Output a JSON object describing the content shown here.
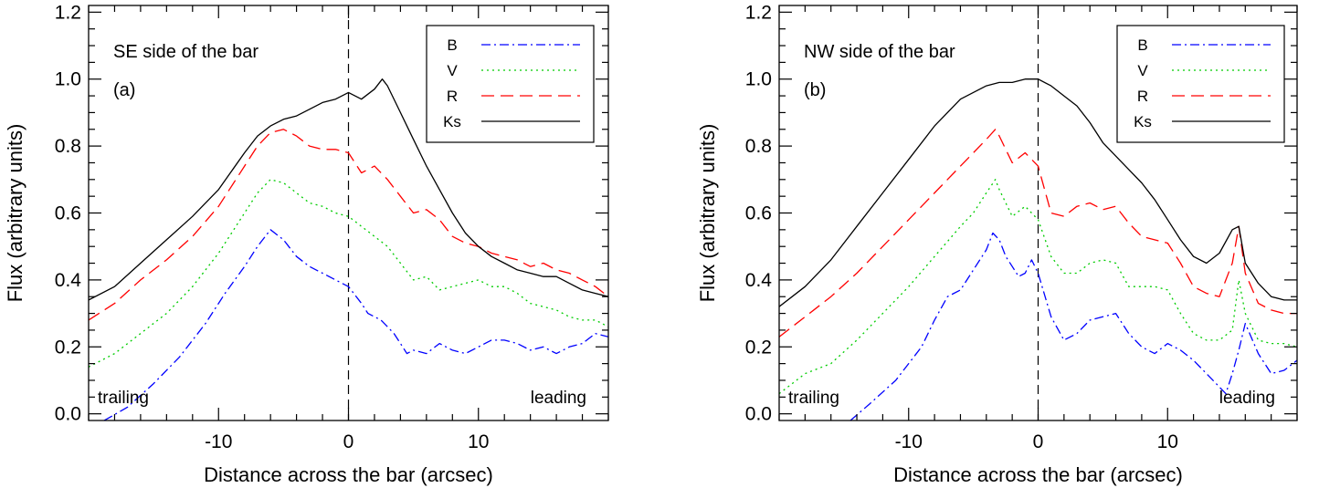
{
  "chart_data": [
    {
      "type": "line",
      "panel": "(a)",
      "annotation": "SE side of the bar",
      "corner_labels": {
        "left": "trailing",
        "right": "leading"
      },
      "xlabel": "Distance across the bar (arcsec)",
      "ylabel": "Flux (arbitrary units)",
      "xlim": [
        -20,
        20
      ],
      "ylim": [
        -0.02,
        1.22
      ],
      "xticks": [
        -10,
        0,
        10
      ],
      "xtick_labels": [
        "-10",
        "0",
        "10"
      ],
      "yticks": [
        0.0,
        0.2,
        0.4,
        0.6,
        0.8,
        1.0,
        1.2
      ],
      "ytick_labels": [
        "0.0",
        "0.2",
        "0.4",
        "0.6",
        "0.8",
        "1.0",
        "1.2"
      ],
      "legend_placement": "top-right",
      "vertical_reference_line": 0,
      "series": [
        {
          "name": "B",
          "color": "#0000ff",
          "dash": "dashdot",
          "x": [
            -18.8,
            -17,
            -15,
            -13,
            -11,
            -9.5,
            -8,
            -7,
            -6,
            -5,
            -4,
            -3,
            -2,
            -1,
            0,
            1,
            1.5,
            2.5,
            3.5,
            4.5,
            5,
            6,
            7,
            8,
            9,
            10,
            11,
            12,
            13,
            14,
            15,
            16,
            17,
            18,
            19,
            20
          ],
          "y": [
            -0.02,
            0.02,
            0.09,
            0.17,
            0.27,
            0.36,
            0.44,
            0.5,
            0.55,
            0.52,
            0.47,
            0.44,
            0.42,
            0.4,
            0.38,
            0.33,
            0.3,
            0.28,
            0.24,
            0.18,
            0.19,
            0.18,
            0.21,
            0.19,
            0.18,
            0.2,
            0.22,
            0.22,
            0.21,
            0.19,
            0.2,
            0.18,
            0.2,
            0.21,
            0.24,
            0.23
          ]
        },
        {
          "name": "V",
          "color": "#00cc00",
          "dash": "dotted",
          "x": [
            -20,
            -18,
            -16,
            -14,
            -12,
            -10,
            -8,
            -7,
            -6,
            -5,
            -4,
            -3,
            -2,
            -1,
            0,
            1,
            2,
            3,
            4,
            5,
            6,
            7,
            8,
            9,
            10,
            11,
            12,
            13,
            14,
            15,
            16,
            17,
            18,
            19,
            20
          ],
          "y": [
            0.14,
            0.18,
            0.24,
            0.3,
            0.38,
            0.48,
            0.6,
            0.66,
            0.7,
            0.69,
            0.66,
            0.63,
            0.62,
            0.6,
            0.59,
            0.56,
            0.53,
            0.5,
            0.45,
            0.4,
            0.41,
            0.37,
            0.38,
            0.39,
            0.4,
            0.38,
            0.38,
            0.36,
            0.33,
            0.32,
            0.31,
            0.29,
            0.28,
            0.28,
            0.26
          ]
        },
        {
          "name": "R",
          "color": "#ff0000",
          "dash": "dashed",
          "x": [
            -20,
            -18,
            -16,
            -14,
            -12,
            -10,
            -8,
            -7,
            -6,
            -5,
            -4,
            -3,
            -2,
            -1,
            0,
            1,
            2,
            3,
            4,
            5,
            6,
            7,
            8,
            9,
            10,
            11,
            12,
            13,
            14,
            15,
            16,
            17,
            18,
            19,
            20
          ],
          "y": [
            0.28,
            0.33,
            0.4,
            0.46,
            0.53,
            0.62,
            0.74,
            0.8,
            0.84,
            0.85,
            0.83,
            0.8,
            0.79,
            0.79,
            0.78,
            0.72,
            0.74,
            0.7,
            0.65,
            0.6,
            0.61,
            0.58,
            0.53,
            0.51,
            0.5,
            0.48,
            0.47,
            0.46,
            0.44,
            0.45,
            0.43,
            0.42,
            0.4,
            0.38,
            0.35
          ]
        },
        {
          "name": "Ks",
          "color": "#000000",
          "dash": "solid",
          "x": [
            -20,
            -18,
            -16,
            -14,
            -12,
            -10,
            -8,
            -7,
            -6,
            -5,
            -4,
            -3,
            -2,
            -1,
            0,
            1,
            2,
            2.6,
            3,
            4,
            5,
            6,
            7,
            8,
            9,
            10,
            11,
            12,
            13,
            14,
            15,
            16,
            17,
            18,
            19,
            20
          ],
          "y": [
            0.34,
            0.38,
            0.45,
            0.52,
            0.59,
            0.67,
            0.78,
            0.83,
            0.86,
            0.88,
            0.89,
            0.91,
            0.93,
            0.94,
            0.96,
            0.94,
            0.97,
            1.0,
            0.98,
            0.9,
            0.82,
            0.74,
            0.67,
            0.6,
            0.54,
            0.5,
            0.47,
            0.45,
            0.43,
            0.42,
            0.41,
            0.41,
            0.39,
            0.37,
            0.36,
            0.35
          ]
        }
      ]
    },
    {
      "type": "line",
      "panel": "(b)",
      "annotation": "NW side of the bar",
      "corner_labels": {
        "left": "trailing",
        "right": "leading"
      },
      "xlabel": "Distance across the bar (arcsec)",
      "ylabel": "Flux (arbitrary units)",
      "xlim": [
        -20,
        20
      ],
      "ylim": [
        -0.02,
        1.22
      ],
      "xticks": [
        -10,
        0,
        10
      ],
      "xtick_labels": [
        "-10",
        "0",
        "10"
      ],
      "yticks": [
        0.0,
        0.2,
        0.4,
        0.6,
        0.8,
        1.0,
        1.2
      ],
      "ytick_labels": [
        "0.0",
        "0.2",
        "0.4",
        "0.6",
        "0.8",
        "1.0",
        "1.2"
      ],
      "legend_placement": "top-right",
      "vertical_reference_line": 0,
      "series": [
        {
          "name": "B",
          "color": "#0000ff",
          "dash": "dashdot",
          "x": [
            -14.5,
            -13,
            -11,
            -9,
            -8,
            -7,
            -6,
            -5,
            -4,
            -3.5,
            -3,
            -2.5,
            -2,
            -1.5,
            -1,
            -0.5,
            0,
            1,
            2,
            3,
            4,
            5,
            6,
            7,
            8,
            9,
            10,
            11,
            12,
            13,
            14,
            14.5,
            15,
            15.5,
            16,
            17,
            18,
            19,
            20
          ],
          "y": [
            -0.02,
            0.03,
            0.1,
            0.2,
            0.28,
            0.35,
            0.37,
            0.43,
            0.49,
            0.54,
            0.52,
            0.47,
            0.44,
            0.41,
            0.42,
            0.46,
            0.42,
            0.29,
            0.22,
            0.24,
            0.28,
            0.29,
            0.3,
            0.24,
            0.2,
            0.18,
            0.21,
            0.19,
            0.16,
            0.12,
            0.08,
            0.06,
            0.12,
            0.19,
            0.27,
            0.18,
            0.12,
            0.13,
            0.16
          ]
        },
        {
          "name": "V",
          "color": "#00cc00",
          "dash": "dotted",
          "x": [
            -20,
            -18,
            -16,
            -14,
            -12,
            -10,
            -8,
            -6,
            -5,
            -4,
            -3.3,
            -3,
            -2,
            -1,
            0,
            1,
            2,
            3,
            4,
            5,
            6,
            7,
            8,
            9,
            10,
            11,
            12,
            13,
            14,
            15,
            15.5,
            16,
            17,
            18,
            19,
            20
          ],
          "y": [
            0.06,
            0.12,
            0.15,
            0.22,
            0.3,
            0.38,
            0.47,
            0.56,
            0.6,
            0.66,
            0.7,
            0.67,
            0.59,
            0.62,
            0.58,
            0.47,
            0.42,
            0.42,
            0.45,
            0.46,
            0.45,
            0.38,
            0.38,
            0.38,
            0.37,
            0.3,
            0.24,
            0.22,
            0.22,
            0.25,
            0.4,
            0.3,
            0.22,
            0.21,
            0.21,
            0.2
          ]
        },
        {
          "name": "R",
          "color": "#ff0000",
          "dash": "dashed",
          "x": [
            -20,
            -18,
            -16,
            -14,
            -12,
            -10,
            -8,
            -6,
            -5,
            -4,
            -3.3,
            -3,
            -2,
            -1,
            0,
            1,
            2,
            3,
            4,
            5,
            6,
            7,
            8,
            9,
            10,
            11,
            12,
            13,
            14,
            15,
            15.5,
            16,
            17,
            18,
            19,
            20
          ],
          "y": [
            0.23,
            0.29,
            0.35,
            0.42,
            0.5,
            0.58,
            0.66,
            0.74,
            0.78,
            0.82,
            0.85,
            0.83,
            0.75,
            0.78,
            0.74,
            0.6,
            0.59,
            0.62,
            0.63,
            0.61,
            0.62,
            0.57,
            0.53,
            0.52,
            0.51,
            0.45,
            0.38,
            0.36,
            0.35,
            0.45,
            0.56,
            0.42,
            0.33,
            0.31,
            0.3,
            0.3
          ]
        },
        {
          "name": "Ks",
          "color": "#000000",
          "dash": "solid",
          "x": [
            -20,
            -18,
            -16,
            -14,
            -12,
            -10,
            -8,
            -6,
            -4,
            -3,
            -2,
            -1,
            0,
            1,
            2,
            3,
            4,
            5,
            6,
            7,
            8,
            9,
            10,
            11,
            12,
            13,
            14,
            15,
            15.5,
            16,
            17,
            18,
            19,
            20
          ],
          "y": [
            0.32,
            0.38,
            0.46,
            0.56,
            0.66,
            0.76,
            0.86,
            0.94,
            0.98,
            0.99,
            0.99,
            1.0,
            1.0,
            0.98,
            0.95,
            0.92,
            0.87,
            0.81,
            0.77,
            0.73,
            0.69,
            0.64,
            0.58,
            0.52,
            0.47,
            0.45,
            0.48,
            0.55,
            0.56,
            0.45,
            0.39,
            0.35,
            0.34,
            0.34
          ]
        }
      ]
    }
  ]
}
